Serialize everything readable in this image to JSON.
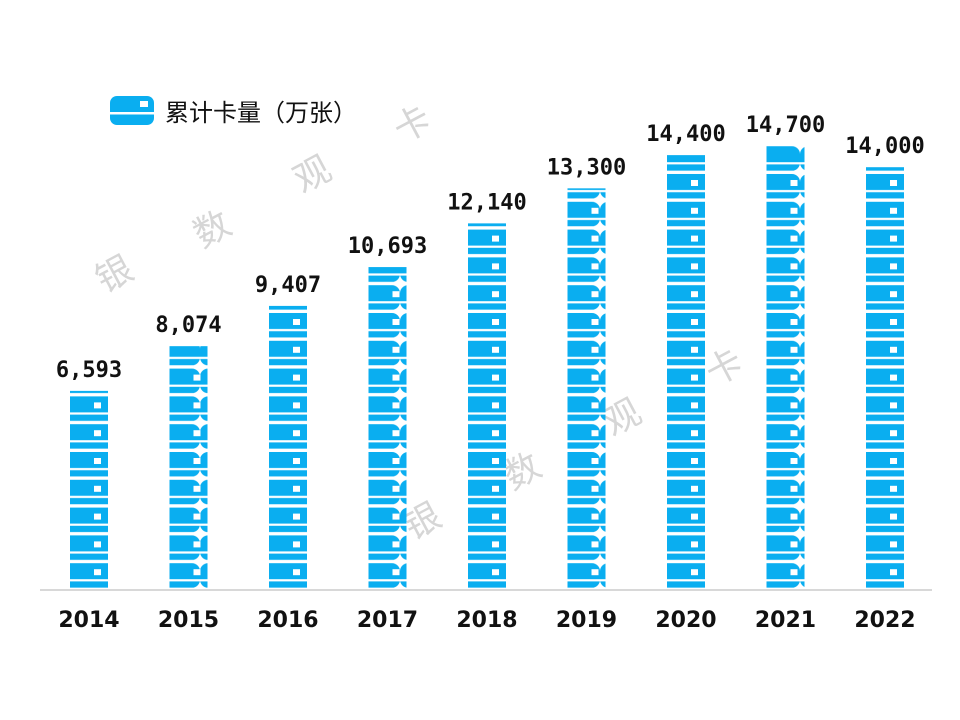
{
  "chart_data": {
    "type": "bar",
    "categories": [
      "2014",
      "2015",
      "2016",
      "2017",
      "2018",
      "2019",
      "2020",
      "2021",
      "2022"
    ],
    "series": [
      {
        "name": "累计卡量（万张）",
        "values": [
          6593,
          8074,
          9407,
          10693,
          12140,
          13300,
          14400,
          14700,
          14000
        ],
        "labels": [
          "6,593",
          "8,074",
          "9,407",
          "10,693",
          "12,140",
          "13,300",
          "14,400",
          "14,700",
          "14,000"
        ]
      }
    ],
    "ylim": [
      0,
      16000
    ],
    "grid": false,
    "legend": "top-left",
    "colors": {
      "bar": "#0aaef0",
      "baseline": "#cccccc"
    },
    "watermarks": [
      "银",
      "数",
      "观",
      "卡",
      "银",
      "数",
      "观",
      "卡"
    ]
  }
}
